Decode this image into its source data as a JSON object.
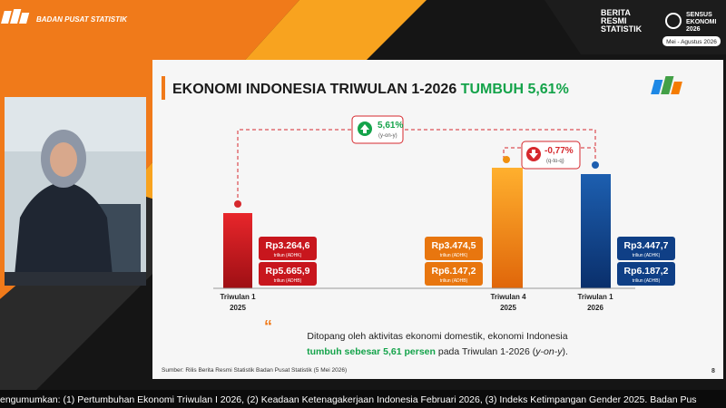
{
  "header": {
    "org": "BADAN PUSAT STATISTIK",
    "brs": [
      "BERITA",
      "RESMI",
      "STATISTIK"
    ],
    "sensus": [
      "SENSUS",
      "EKONOMI",
      "2026"
    ],
    "period": "Mei - Agustus 2026"
  },
  "slide": {
    "title": "EKONOMI INDONESIA TRIWULAN 1-2026",
    "title_highlight": "TUMBUH 5,61%",
    "yoy": {
      "value": "5,61%",
      "label": "(y-on-y)"
    },
    "qtq": {
      "value": "-0,77%",
      "label": "(q-to-q)"
    },
    "groups": [
      {
        "label": [
          "Triwulan 1",
          "2025"
        ],
        "adhk": "Rp3.264,6",
        "adhk_unit": "triliun (ADHK)",
        "adhb": "Rp5.665,9",
        "adhb_unit": "triliun (ADHB)"
      },
      {
        "label": [
          "Triwulan 4",
          "2025"
        ],
        "adhk": "Rp3.474,5",
        "adhk_unit": "triliun (ADHK)",
        "adhb": "Rp6.147,2",
        "adhb_unit": "triliun (ADHB)"
      },
      {
        "label": [
          "Triwulan 1",
          "2026"
        ],
        "adhk": "Rp3.447,7",
        "adhk_unit": "triliun (ADHK)",
        "adhb": "Rp6.187,2",
        "adhb_unit": "triliun (ADHB)"
      }
    ],
    "quote": {
      "line1": "Ditopang oleh aktivitas ekonomi domestik, ekonomi Indonesia",
      "line2_highlight": "tumbuh sebesar 5,61 persen",
      "line2_rest": " pada Triwulan 1-2026 (",
      "line2_italic": "y-on-y",
      "line2_end": ")."
    },
    "source": "Sumber: Rilis Berita Resmi Statistik Badan Pusat Statistik (5 Mei 2026)",
    "page": "8"
  },
  "ticker": "engumumkan: (1) Pertumbuhan Ekonomi Triwulan I 2026, (2) Keadaan Ketenagakerjaan Indonesia Februari 2026, (3) Indeks Ketimpangan Gender 2025. Badan Pus"
}
